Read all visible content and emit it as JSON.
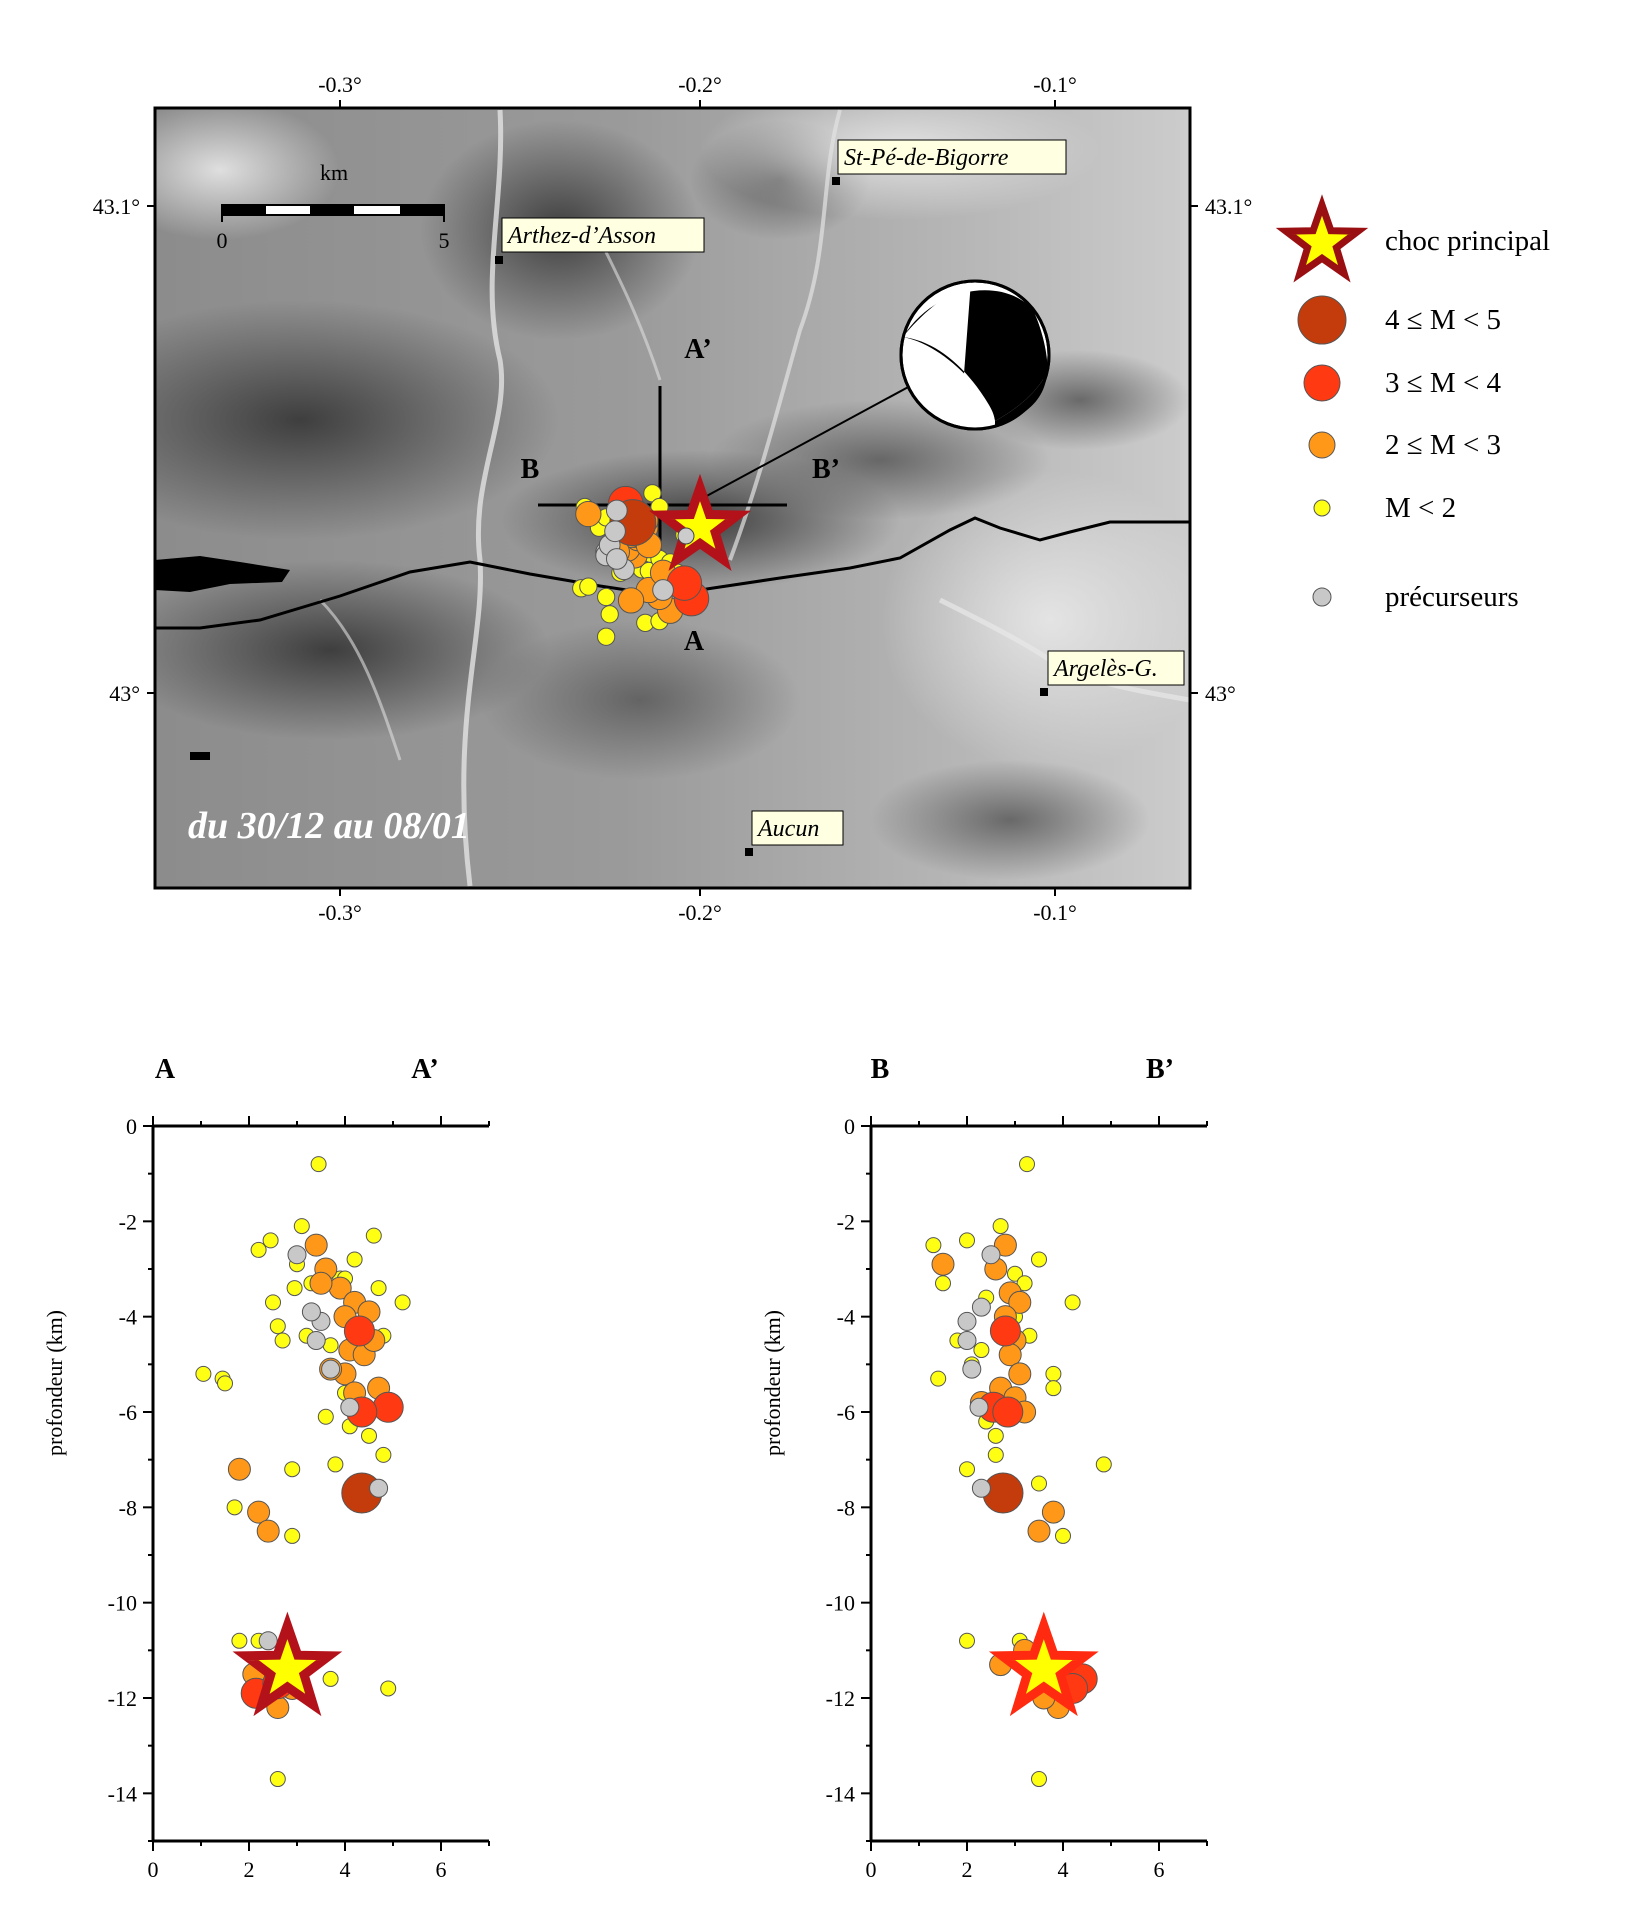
{
  "map": {
    "lon_ticks": [
      "-0.3°",
      "-0.2°",
      "-0.1°"
    ],
    "lat_ticks": [
      "43.1°",
      "43°"
    ],
    "scale_bar": {
      "unit": "km",
      "min_label": "0",
      "max_label": "5"
    },
    "date_range": "du 30/12 au 08/01",
    "towns": [
      {
        "name": "St-Pé-de-Bigorre",
        "lon": -0.16,
        "lat": 43.105
      },
      {
        "name": "Arthez-d’Asson",
        "lon": -0.255,
        "lat": 43.088
      },
      {
        "name": "Argelès-G.",
        "lon": -0.1,
        "lat": 43.0
      },
      {
        "name": "Aucun",
        "lon": -0.183,
        "lat": 42.967
      }
    ],
    "profile_labels": {
      "A": "A",
      "A_prime": "A’",
      "B": "B",
      "B_prime": "B’"
    },
    "mainshock": {
      "lon": -0.2,
      "lat": 43.034
    }
  },
  "legend": {
    "items": [
      {
        "label": "choc principal",
        "symbol": "star"
      },
      {
        "label": "4 ≤ M < 5",
        "color": "#c43c0c"
      },
      {
        "label": "3 ≤ M < 4",
        "color": "#ff3a12"
      },
      {
        "label": "2 ≤ M < 3",
        "color": "#ff9818"
      },
      {
        "label": "M < 2",
        "color": "#ffff14"
      },
      {
        "label": "précurseurs",
        "color": "#c8c8c8"
      }
    ]
  },
  "sections": {
    "AA": {
      "left_label": "A",
      "right_label": "A’",
      "ylabel": "profondeur (km)",
      "x_ticks": [
        "0",
        "2",
        "4",
        "6"
      ],
      "y_ticks": [
        "0",
        "-2",
        "-4",
        "-6",
        "-8",
        "-10",
        "-12",
        "-14"
      ]
    },
    "BB": {
      "left_label": "B",
      "right_label": "B’",
      "ylabel": "profondeur (km)",
      "x_ticks": [
        "0",
        "2",
        "4",
        "6"
      ],
      "y_ticks": [
        "0",
        "-2",
        "-4",
        "-6",
        "-8",
        "-10",
        "-12",
        "-14"
      ]
    }
  },
  "chart_data": [
    {
      "type": "scatter",
      "title": "A – A’",
      "xlabel": "",
      "ylabel": "profondeur (km)",
      "xlim": [
        0,
        7
      ],
      "ylim": [
        -15,
        0
      ],
      "mainshock": {
        "x": 2.8,
        "y": -11.4
      },
      "series": [
        {
          "name": "4 ≤ M < 5",
          "points": [
            [
              4.35,
              -7.7
            ]
          ]
        },
        {
          "name": "3 ≤ M < 4",
          "points": [
            [
              4.3,
              -4.3
            ],
            [
              4.9,
              -5.9
            ],
            [
              4.35,
              -6.0
            ],
            [
              2.15,
              -11.9
            ],
            [
              2.6,
              -11.7
            ]
          ]
        },
        {
          "name": "2 ≤ M < 3",
          "points": [
            [
              3.4,
              -2.5
            ],
            [
              3.6,
              -3.0
            ],
            [
              3.9,
              -3.4
            ],
            [
              4.2,
              -3.7
            ],
            [
              4.0,
              -4.0
            ],
            [
              4.5,
              -3.9
            ],
            [
              4.1,
              -4.7
            ],
            [
              4.4,
              -4.8
            ],
            [
              4.0,
              -5.2
            ],
            [
              4.2,
              -5.6
            ],
            [
              3.7,
              -5.1
            ],
            [
              4.6,
              -4.5
            ],
            [
              1.8,
              -7.2
            ],
            [
              2.2,
              -8.1
            ],
            [
              2.4,
              -8.5
            ],
            [
              2.1,
              -11.5
            ],
            [
              2.6,
              -12.2
            ],
            [
              2.9,
              -11.8
            ],
            [
              3.5,
              -3.3
            ],
            [
              4.7,
              -5.5
            ]
          ]
        },
        {
          "name": "M < 2",
          "points": [
            [
              3.45,
              -0.8
            ],
            [
              3.1,
              -2.1
            ],
            [
              2.2,
              -2.6
            ],
            [
              2.45,
              -2.4
            ],
            [
              3.0,
              -2.9
            ],
            [
              2.95,
              -3.4
            ],
            [
              2.5,
              -3.7
            ],
            [
              3.3,
              -3.3
            ],
            [
              3.9,
              -3.2
            ],
            [
              4.6,
              -2.3
            ],
            [
              4.0,
              -3.2
            ],
            [
              4.2,
              -2.8
            ],
            [
              4.7,
              -3.4
            ],
            [
              5.2,
              -3.7
            ],
            [
              4.8,
              -4.4
            ],
            [
              2.6,
              -4.2
            ],
            [
              3.2,
              -4.4
            ],
            [
              4.0,
              -5.6
            ],
            [
              3.6,
              -6.1
            ],
            [
              4.5,
              -6.5
            ],
            [
              4.8,
              -6.9
            ],
            [
              3.8,
              -7.1
            ],
            [
              2.9,
              -7.2
            ],
            [
              1.05,
              -5.2
            ],
            [
              1.45,
              -5.3
            ],
            [
              1.5,
              -5.4
            ],
            [
              1.7,
              -8.0
            ],
            [
              2.9,
              -8.6
            ],
            [
              1.8,
              -10.8
            ],
            [
              2.2,
              -10.8
            ],
            [
              3.7,
              -11.6
            ],
            [
              4.9,
              -11.8
            ],
            [
              2.6,
              -13.7
            ],
            [
              2.7,
              -4.5
            ],
            [
              4.4,
              -4.1
            ],
            [
              3.7,
              -4.6
            ],
            [
              4.1,
              -6.3
            ]
          ]
        },
        {
          "name": "précurseurs",
          "points": [
            [
              3.0,
              -2.7
            ],
            [
              3.5,
              -4.1
            ],
            [
              3.4,
              -4.5
            ],
            [
              3.7,
              -5.1
            ],
            [
              4.1,
              -5.9
            ],
            [
              4.7,
              -7.6
            ],
            [
              2.4,
              -10.8
            ],
            [
              3.3,
              -3.9
            ]
          ]
        }
      ]
    },
    {
      "type": "scatter",
      "title": "B – B’",
      "xlabel": "",
      "ylabel": "profondeur (km)",
      "xlim": [
        0,
        7
      ],
      "ylim": [
        -15,
        0
      ],
      "mainshock": {
        "x": 3.6,
        "y": -11.4
      },
      "series": [
        {
          "name": "4 ≤ M < 5",
          "points": [
            [
              2.75,
              -7.7
            ]
          ]
        },
        {
          "name": "3 ≤ M < 4",
          "points": [
            [
              2.8,
              -4.3
            ],
            [
              2.55,
              -5.9
            ],
            [
              2.85,
              -6.0
            ],
            [
              4.4,
              -11.6
            ],
            [
              4.2,
              -11.8
            ]
          ]
        },
        {
          "name": "2 ≤ M < 3",
          "points": [
            [
              2.8,
              -2.5
            ],
            [
              2.6,
              -3.0
            ],
            [
              2.9,
              -3.5
            ],
            [
              3.1,
              -3.7
            ],
            [
              2.8,
              -4.0
            ],
            [
              3.0,
              -4.5
            ],
            [
              2.9,
              -4.8
            ],
            [
              3.1,
              -5.2
            ],
            [
              2.7,
              -5.5
            ],
            [
              3.0,
              -5.7
            ],
            [
              3.2,
              -6.0
            ],
            [
              1.5,
              -2.9
            ],
            [
              3.8,
              -8.1
            ],
            [
              3.5,
              -8.5
            ],
            [
              3.2,
              -11.0
            ],
            [
              2.7,
              -11.3
            ],
            [
              3.9,
              -12.2
            ],
            [
              3.6,
              -12.0
            ],
            [
              2.3,
              -5.8
            ]
          ]
        },
        {
          "name": "M < 2",
          "points": [
            [
              3.25,
              -0.8
            ],
            [
              2.7,
              -2.1
            ],
            [
              2.0,
              -2.4
            ],
            [
              1.3,
              -2.5
            ],
            [
              3.0,
              -3.1
            ],
            [
              3.2,
              -3.3
            ],
            [
              1.5,
              -3.3
            ],
            [
              3.5,
              -2.8
            ],
            [
              2.4,
              -3.6
            ],
            [
              3.0,
              -4.0
            ],
            [
              4.2,
              -3.7
            ],
            [
              1.8,
              -4.5
            ],
            [
              2.3,
              -4.7
            ],
            [
              3.3,
              -4.4
            ],
            [
              1.4,
              -5.3
            ],
            [
              3.8,
              -5.2
            ],
            [
              3.8,
              -5.5
            ],
            [
              2.6,
              -6.5
            ],
            [
              2.6,
              -6.9
            ],
            [
              2.0,
              -7.2
            ],
            [
              3.5,
              -7.5
            ],
            [
              4.85,
              -7.1
            ],
            [
              4.0,
              -8.6
            ],
            [
              2.0,
              -10.8
            ],
            [
              3.1,
              -10.8
            ],
            [
              3.5,
              -13.7
            ],
            [
              2.1,
              -5.0
            ],
            [
              2.4,
              -6.2
            ]
          ]
        },
        {
          "name": "précurseurs",
          "points": [
            [
              2.5,
              -2.7
            ],
            [
              2.0,
              -4.1
            ],
            [
              2.0,
              -4.5
            ],
            [
              2.1,
              -5.1
            ],
            [
              2.25,
              -5.9
            ],
            [
              2.3,
              -7.6
            ],
            [
              3.6,
              -10.8
            ],
            [
              2.3,
              -3.8
            ]
          ]
        }
      ]
    }
  ]
}
